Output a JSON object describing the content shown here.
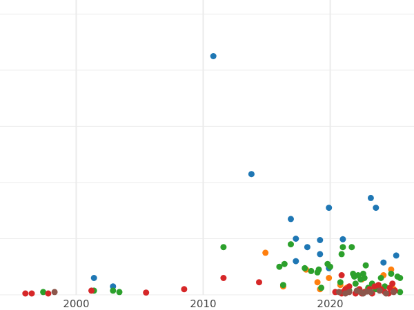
{
  "chart_data": {
    "type": "scatter",
    "title": "",
    "xlabel": "",
    "ylabel": "",
    "xlim": [
      1994,
      2026.6
    ],
    "ylim": [
      0,
      10.5
    ],
    "grid": true,
    "legend": "none",
    "x_ticks": [
      {
        "value": 2000,
        "label": "2000"
      },
      {
        "value": 2010,
        "label": "2010"
      },
      {
        "value": 2020,
        "label": "2020"
      }
    ],
    "y_gridlines": [
      0,
      2,
      4,
      6,
      8,
      10
    ],
    "colors": {
      "blue": "#1f77b4",
      "orange": "#ff7f0e",
      "green": "#2ca02c",
      "red": "#d62728",
      "brown": "#8c564b",
      "grid": "#ebebeb",
      "tick_text": "#444444",
      "background": "#ffffff"
    },
    "series": [
      {
        "color": "blue",
        "points": [
          [
            2001.4,
            0.6
          ],
          [
            2002.9,
            0.3
          ],
          [
            2010.8,
            8.5
          ],
          [
            2013.8,
            4.3
          ],
          [
            2016.9,
            2.7
          ],
          [
            2017.3,
            2.0
          ],
          [
            2018.2,
            1.7
          ],
          [
            2019.2,
            1.95
          ],
          [
            2019.9,
            3.1
          ],
          [
            2021.0,
            1.98
          ],
          [
            2023.2,
            3.45
          ],
          [
            2023.6,
            3.1
          ],
          [
            2025.2,
            1.4
          ],
          [
            2019.2,
            1.45
          ],
          [
            2017.3,
            1.2
          ],
          [
            2024.2,
            1.15
          ],
          [
            2019.9,
            0.95
          ]
        ]
      },
      {
        "color": "orange",
        "points": [
          [
            2014.9,
            1.5
          ],
          [
            2016.3,
            0.3
          ],
          [
            2018.1,
            0.9
          ],
          [
            2019.0,
            0.45
          ],
          [
            2019.2,
            0.2
          ],
          [
            2019.9,
            0.6
          ],
          [
            2020.8,
            0.35
          ],
          [
            2021.3,
            0.25
          ],
          [
            2022.5,
            0.55
          ],
          [
            2024.2,
            0.7
          ],
          [
            2024.8,
            0.9
          ],
          [
            2025.0,
            0.2
          ],
          [
            2022.9,
            0.15
          ],
          [
            2023.7,
            0.3
          ]
        ]
      },
      {
        "color": "green",
        "points": [
          [
            1997.4,
            0.1
          ],
          [
            2001.4,
            0.15
          ],
          [
            2002.9,
            0.15
          ],
          [
            2003.4,
            0.1
          ],
          [
            2011.6,
            1.7
          ],
          [
            2016.0,
            1.0
          ],
          [
            2016.3,
            0.35
          ],
          [
            2016.4,
            1.1
          ],
          [
            2016.9,
            1.8
          ],
          [
            2018.0,
            0.95
          ],
          [
            2018.5,
            0.85
          ],
          [
            2019.0,
            0.8
          ],
          [
            2019.1,
            0.9
          ],
          [
            2019.3,
            0.25
          ],
          [
            2019.8,
            1.1
          ],
          [
            2020.0,
            1.0
          ],
          [
            2020.8,
            0.45
          ],
          [
            2020.9,
            1.45
          ],
          [
            2021.0,
            1.7
          ],
          [
            2021.7,
            1.7
          ],
          [
            2021.8,
            0.75
          ],
          [
            2021.9,
            0.65
          ],
          [
            2022.0,
            0.4
          ],
          [
            2022.2,
            0.7
          ],
          [
            2022.4,
            0.55
          ],
          [
            2022.6,
            0.75
          ],
          [
            2022.7,
            0.6
          ],
          [
            2022.8,
            1.05
          ],
          [
            2023.3,
            0.4
          ],
          [
            2023.6,
            0.2
          ],
          [
            2024.0,
            0.6
          ],
          [
            2024.3,
            0.3
          ],
          [
            2024.8,
            0.75
          ],
          [
            2025.3,
            0.65
          ],
          [
            2025.5,
            0.6
          ],
          [
            2025.5,
            0.1
          ],
          [
            2021.5,
            0.15
          ],
          [
            2023.0,
            0.25
          ]
        ]
      },
      {
        "color": "red",
        "points": [
          [
            1996.0,
            0.05
          ],
          [
            1996.5,
            0.05
          ],
          [
            1997.8,
            0.05
          ],
          [
            2001.2,
            0.15
          ],
          [
            2005.5,
            0.08
          ],
          [
            2008.5,
            0.2
          ],
          [
            2011.6,
            0.6
          ],
          [
            2014.4,
            0.45
          ],
          [
            2020.4,
            0.1
          ],
          [
            2020.9,
            0.7
          ],
          [
            2020.9,
            0.05
          ],
          [
            2021.2,
            0.2
          ],
          [
            2021.5,
            0.3
          ],
          [
            2022.0,
            0.05
          ],
          [
            2022.3,
            0.2
          ],
          [
            2022.7,
            0.1
          ],
          [
            2023.1,
            0.2
          ],
          [
            2023.3,
            0.05
          ],
          [
            2023.5,
            0.3
          ],
          [
            2024.0,
            0.2
          ],
          [
            2024.3,
            0.1
          ],
          [
            2024.6,
            0.05
          ],
          [
            2024.9,
            0.4
          ],
          [
            2025.1,
            0.15
          ],
          [
            2021.0,
            0.1
          ],
          [
            2022.5,
            0.05
          ],
          [
            2023.8,
            0.35
          ],
          [
            2024.7,
            0.25
          ]
        ]
      },
      {
        "color": "brown",
        "points": [
          [
            1998.3,
            0.1
          ],
          [
            2020.7,
            0.1
          ],
          [
            2021.2,
            0.05
          ],
          [
            2021.5,
            0.1
          ],
          [
            2022.1,
            0.15
          ],
          [
            2022.4,
            0.1
          ],
          [
            2022.6,
            0.05
          ],
          [
            2022.9,
            0.12
          ],
          [
            2023.2,
            0.1
          ],
          [
            2023.9,
            0.15
          ],
          [
            2024.4,
            0.05
          ],
          [
            2025.0,
            0.1
          ]
        ]
      }
    ]
  }
}
